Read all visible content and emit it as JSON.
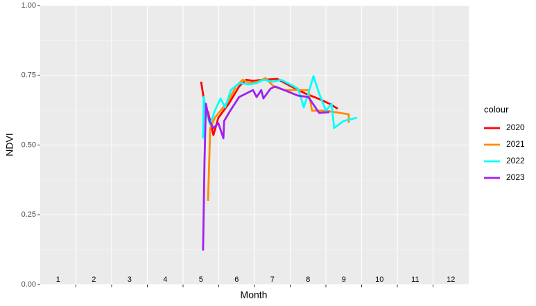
{
  "chart_data": {
    "type": "line",
    "x_label": "Month",
    "y_label": "NDVI",
    "legend_title": "colour",
    "xlim": [
      0.5,
      12.5
    ],
    "xticks": [
      1.5,
      2.5,
      3.5,
      4.5,
      5.5,
      6.5,
      7.5,
      8.5,
      9.5,
      10.5,
      11.5
    ],
    "month_labels": [
      1,
      2,
      3,
      4,
      5,
      6,
      7,
      8,
      9,
      10,
      11,
      12
    ],
    "ylim": [
      0,
      1
    ],
    "yticks": [
      {
        "value": 0,
        "label": "0.00"
      },
      {
        "value": 0.25,
        "label": "0.25"
      },
      {
        "value": 0.5,
        "label": "0.50"
      },
      {
        "value": 0.75,
        "label": "0.75"
      },
      {
        "value": 1,
        "label": "1.00"
      }
    ],
    "grid": true,
    "series": [
      {
        "name": "2020",
        "color": "#ff0000",
        "x": [
          5.005,
          5.12,
          5.2,
          5.35,
          5.49,
          5.78,
          6.07,
          6.27,
          6.46,
          6.75,
          7.14,
          7.53,
          7.92,
          8.31,
          8.6,
          8.83
        ],
        "values": [
          0.727,
          0.635,
          0.618,
          0.536,
          0.598,
          0.648,
          0.71,
          0.734,
          0.73,
          0.734,
          0.737,
          0.71,
          0.685,
          0.665,
          0.648,
          0.63
        ]
      },
      {
        "name": "2021",
        "color": "#ff8c00",
        "x": [
          5.2,
          5.26,
          5.39,
          5.55,
          5.78,
          5.98,
          6.17,
          6.36,
          6.6,
          6.81,
          7.04,
          7.33,
          7.72,
          8.01,
          8.11,
          8.5,
          8.89,
          9.14,
          9.14
        ],
        "values": [
          0.3,
          0.56,
          0.598,
          0.623,
          0.66,
          0.71,
          0.734,
          0.722,
          0.727,
          0.74,
          0.71,
          0.697,
          0.697,
          0.697,
          0.623,
          0.623,
          0.615,
          0.61,
          0.58
        ]
      },
      {
        "name": "2022",
        "color": "#00ffff",
        "x": [
          5.06,
          5.08,
          5.14,
          5.26,
          5.39,
          5.55,
          5.68,
          5.84,
          6.07,
          6.36,
          6.56,
          6.75,
          7.04,
          7.24,
          7.43,
          7.72,
          7.88,
          8.01,
          8.15,
          8.31,
          8.5,
          8.66,
          8.73,
          8.99,
          9.37
        ],
        "values": [
          0.524,
          0.672,
          0.623,
          0.573,
          0.623,
          0.667,
          0.635,
          0.697,
          0.722,
          0.717,
          0.722,
          0.734,
          0.727,
          0.734,
          0.722,
          0.702,
          0.635,
          0.685,
          0.747,
          0.685,
          0.623,
          0.648,
          0.561,
          0.586,
          0.598
        ]
      },
      {
        "name": "2023",
        "color": "#a020f0",
        "x": [
          5.06,
          5.1,
          5.14,
          5.24,
          5.35,
          5.49,
          5.63,
          5.65,
          5.82,
          6.07,
          6.46,
          6.56,
          6.69,
          6.75,
          6.95,
          7.08,
          7.33,
          7.72,
          8.01,
          8.31,
          8.6
        ],
        "values": [
          0.122,
          0.437,
          0.648,
          0.586,
          0.561,
          0.578,
          0.524,
          0.586,
          0.623,
          0.672,
          0.697,
          0.672,
          0.697,
          0.667,
          0.702,
          0.71,
          0.697,
          0.677,
          0.672,
          0.615,
          0.618
        ]
      }
    ]
  }
}
